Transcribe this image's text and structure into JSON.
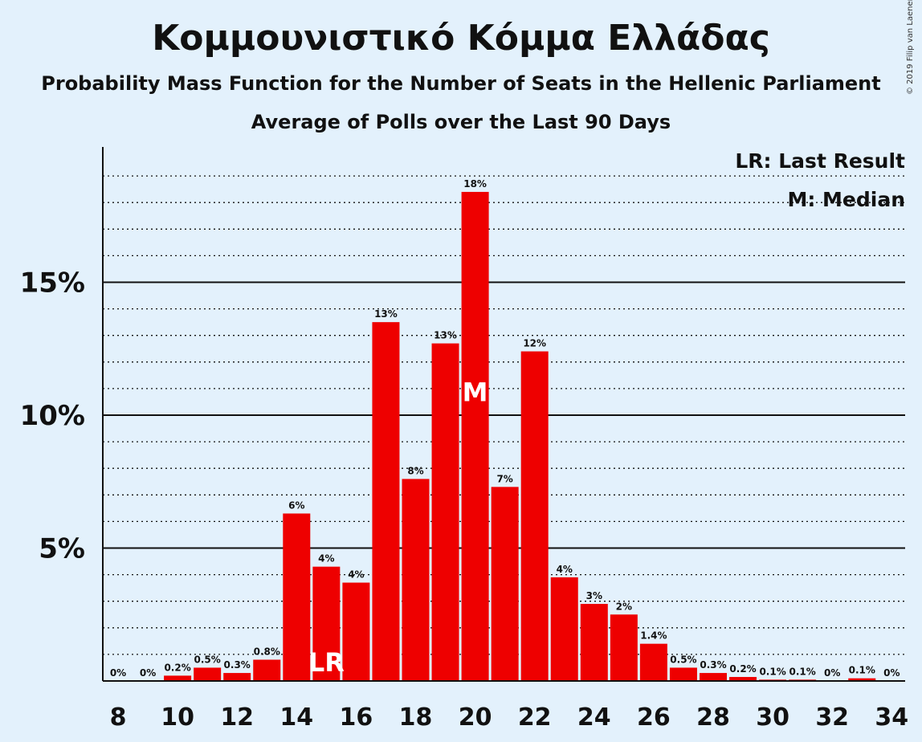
{
  "title": "Κομμουνιστικό Κόμμα Ελλάδας",
  "subtitle": "Probability Mass Function for the Number of Seats in the Hellenic Parliament",
  "subtitle2": "Average of Polls over the Last 90 Days",
  "copyright": "© 2019 Filip van Laenen",
  "legend": {
    "last_result": "LR: Last Result",
    "median": "M: Median"
  },
  "colors": {
    "background": "#e3f1fc",
    "bar": "#ee0000",
    "axis": "#111111"
  },
  "chart_data": {
    "type": "bar",
    "x": [
      8,
      9,
      10,
      11,
      12,
      13,
      14,
      15,
      16,
      17,
      18,
      19,
      20,
      21,
      22,
      23,
      24,
      25,
      26,
      27,
      28,
      29,
      30,
      31,
      32,
      33,
      34
    ],
    "values": [
      0,
      0,
      0.2,
      0.5,
      0.3,
      0.8,
      6.3,
      4.3,
      3.7,
      13.5,
      7.6,
      12.7,
      18.4,
      7.3,
      12.4,
      3.9,
      2.9,
      2.5,
      1.4,
      0.5,
      0.3,
      0.15,
      0.05,
      0.05,
      0,
      0.1,
      0
    ],
    "labels": [
      "0%",
      "0%",
      "0.2%",
      "0.5%",
      "0.3%",
      "0.8%",
      "6%",
      "4%",
      "4%",
      "13%",
      "8%",
      "13%",
      "18%",
      "7%",
      "12%",
      "4%",
      "3%",
      "2%",
      "1.4%",
      "0.5%",
      "0.3%",
      "0.2%",
      "0.1%",
      "0.1%",
      "0%",
      "0.1%",
      "0%"
    ],
    "x_tick_labels": [
      "8",
      "10",
      "12",
      "14",
      "16",
      "18",
      "20",
      "22",
      "24",
      "26",
      "28",
      "30",
      "32",
      "34"
    ],
    "y_tick_labels": [
      "5%",
      "10%",
      "15%"
    ],
    "y_ticks": [
      5,
      10,
      15
    ],
    "ylim": [
      0,
      20
    ],
    "minor_grid_step": 1,
    "last_result": {
      "seat": 15,
      "label": "LR"
    },
    "median": {
      "seat": 20,
      "label": "M"
    }
  }
}
